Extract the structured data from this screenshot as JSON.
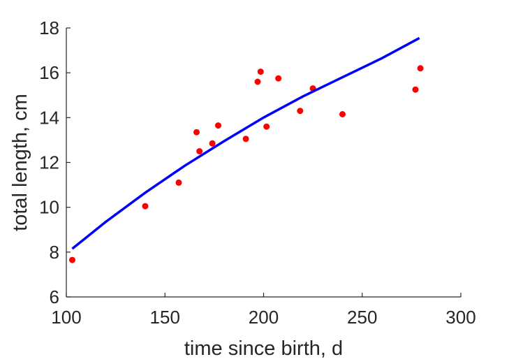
{
  "chart_data": {
    "type": "scatter",
    "title": "",
    "xlabel": "time since birth, d",
    "ylabel": "total length, cm",
    "xlim": [
      100,
      300
    ],
    "ylim": [
      6,
      18
    ],
    "xticks": [
      100,
      150,
      200,
      250,
      300
    ],
    "yticks": [
      6,
      8,
      10,
      12,
      14,
      16,
      18
    ],
    "grid": false,
    "legend": "none",
    "series": [
      {
        "kind": "scatter",
        "color": "#ff0000",
        "x": [
          103,
          140,
          157,
          166,
          167.5,
          174,
          177,
          191,
          197,
          198.5,
          201.5,
          207.5,
          218.5,
          225,
          240,
          277,
          279.5
        ],
        "y": [
          7.65,
          10.05,
          11.1,
          13.35,
          12.5,
          12.85,
          13.65,
          13.05,
          15.6,
          16.05,
          13.6,
          15.75,
          14.3,
          15.3,
          14.15,
          15.25,
          16.2
        ]
      },
      {
        "kind": "line",
        "color": "#0000ff",
        "x": [
          103,
          120,
          140,
          160,
          180,
          200,
          220,
          240,
          260,
          279
        ],
        "y": [
          8.15,
          9.35,
          10.65,
          11.85,
          12.95,
          14.0,
          14.95,
          15.8,
          16.65,
          17.55
        ]
      }
    ]
  }
}
